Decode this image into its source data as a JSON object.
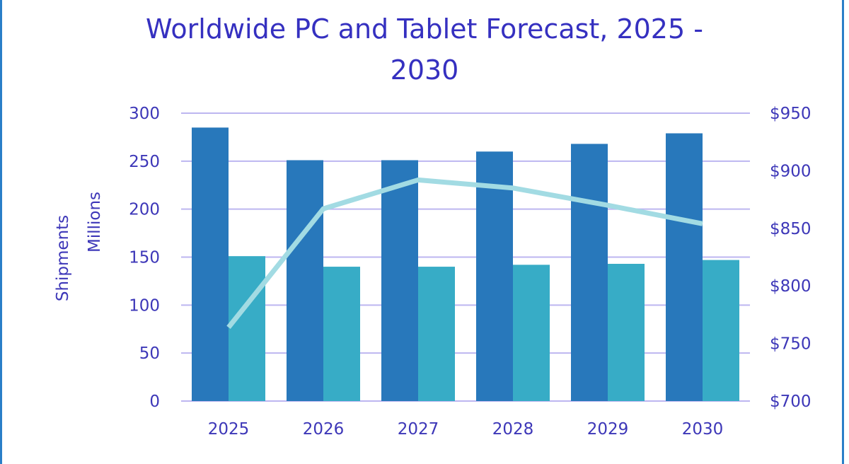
{
  "chart_data": {
    "type": "bar",
    "title_line1": "Worldwide PC and Tablet Forecast, 2025 -",
    "title_line2": "2030",
    "ylabel_line1": "Shipments",
    "ylabel_line2": "Millions",
    "ylim": [
      0,
      300
    ],
    "yticks": [
      "0",
      "50",
      "100",
      "150",
      "200",
      "250",
      "300"
    ],
    "y2lim": [
      700,
      950
    ],
    "y2ticks": [
      "$700",
      "$750",
      "$800",
      "$850",
      "$900",
      "$950"
    ],
    "categories": [
      "2025",
      "2026",
      "2027",
      "2028",
      "2029",
      "2030"
    ],
    "grid": true,
    "series": [
      {
        "type": "bar",
        "axis": "left",
        "color": "#2878bb",
        "values": [
          285,
          251,
          251,
          260,
          268,
          279
        ]
      },
      {
        "type": "bar",
        "axis": "left",
        "color": "#37acc6",
        "values": [
          151,
          140,
          140,
          142,
          143,
          147
        ]
      },
      {
        "type": "line",
        "axis": "right",
        "color": "#a2dbe3",
        "values": [
          764,
          867,
          892,
          885,
          870,
          854
        ]
      }
    ]
  }
}
